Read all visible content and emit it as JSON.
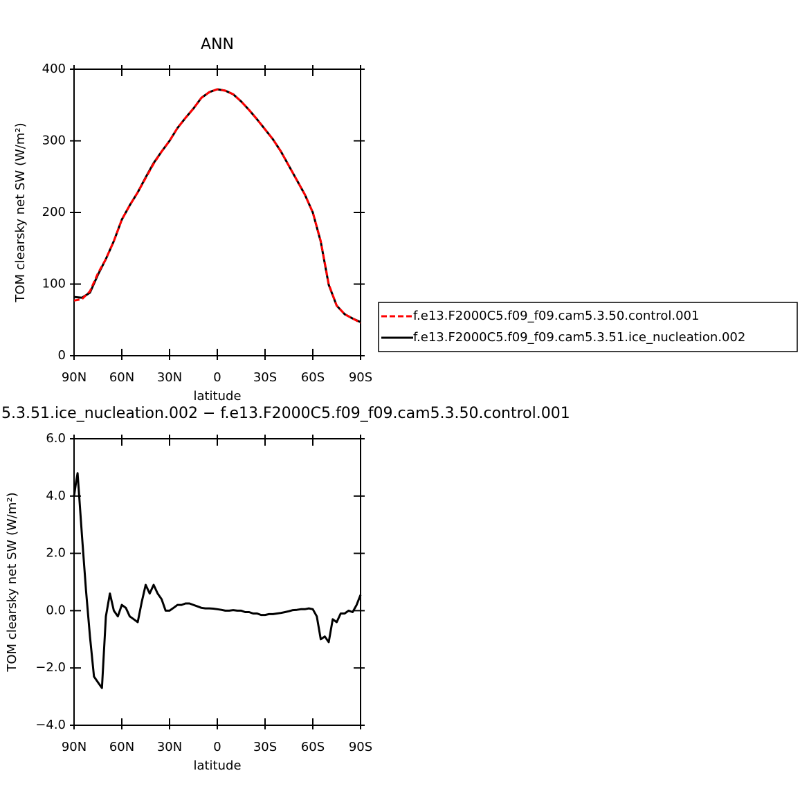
{
  "chart_data": [
    {
      "type": "line",
      "title": "ANN",
      "xlabel": "latitude",
      "ylabel": "TOM clearsky net SW (W/m²)",
      "x": [
        90,
        85,
        80,
        75,
        70,
        65,
        60,
        55,
        50,
        45,
        40,
        35,
        30,
        25,
        20,
        15,
        10,
        5,
        0,
        -5,
        -10,
        -15,
        -20,
        -25,
        -30,
        -35,
        -40,
        -45,
        -50,
        -55,
        -60,
        -65,
        -70,
        -75,
        -80,
        -85,
        -90
      ],
      "series": [
        {
          "name": "f.e13.F2000C5.f09_f09.cam5.3.50.control.001",
          "color": "#ff0000",
          "dashed": true,
          "values": [
            77,
            79,
            90,
            115,
            135,
            160,
            190,
            210,
            228,
            248,
            268,
            285,
            300,
            318,
            332,
            345,
            360,
            368,
            372,
            370,
            365,
            355,
            343,
            330,
            316,
            302,
            285,
            265,
            245,
            225,
            200,
            160,
            100,
            70,
            58,
            52,
            46
          ]
        },
        {
          "name": "f.e13.F2000C5.f09_f09.cam5.3.51.ice_nucleation.002",
          "color": "#000000",
          "dashed": false,
          "values": [
            82,
            81,
            88,
            113,
            135,
            160,
            190,
            210,
            228,
            249,
            269,
            285,
            300,
            318,
            332,
            345,
            360,
            368,
            372,
            370,
            365,
            355,
            343,
            330,
            316,
            302,
            285,
            265,
            245,
            225,
            200,
            159,
            99,
            70,
            58,
            52,
            47
          ]
        }
      ],
      "xlim": [
        90,
        -90
      ],
      "xticks": [
        {
          "value": 90,
          "label": "90N"
        },
        {
          "value": 60,
          "label": "60N"
        },
        {
          "value": 30,
          "label": "30N"
        },
        0,
        {
          "value": -30,
          "label": "30S"
        },
        {
          "value": -60,
          "label": "60S"
        },
        {
          "value": -90,
          "label": "90S"
        }
      ],
      "ylim": [
        0,
        400
      ],
      "yticks": [
        0,
        100,
        200,
        300,
        400
      ]
    },
    {
      "type": "line",
      "title": "5.3.51.ice_nucleation.002 − f.e13.F2000C5.f09_f09.cam5.3.50.control.001",
      "xlabel": "latitude",
      "ylabel": "TOM clearsky net SW (W/m²)",
      "x": [
        90,
        88.7,
        87.8,
        85,
        82.5,
        80,
        77.5,
        75,
        72.5,
        70,
        67.5,
        65,
        62.5,
        60,
        57.5,
        55,
        52.5,
        50,
        47.5,
        45,
        42.5,
        40,
        37.5,
        35,
        32.5,
        30,
        27.5,
        25,
        22.5,
        20,
        17.5,
        15,
        12.5,
        10,
        7.5,
        5,
        2.5,
        0,
        -2.5,
        -5,
        -7.5,
        -10,
        -12.5,
        -15,
        -17.5,
        -20,
        -22.5,
        -25,
        -27.5,
        -30,
        -32.5,
        -35,
        -37.5,
        -40,
        -42.5,
        -45,
        -47.5,
        -50,
        -52.5,
        -55,
        -57.5,
        -60,
        -62.5,
        -65,
        -67.5,
        -70,
        -72.5,
        -75,
        -77.5,
        -80,
        -82.5,
        -85,
        -87.5,
        -90
      ],
      "values": [
        4.0,
        4.5,
        4.8,
        2.6,
        0.7,
        -0.9,
        -2.3,
        -2.5,
        -2.7,
        -0.2,
        0.6,
        0.0,
        -0.2,
        0.2,
        0.1,
        -0.2,
        -0.3,
        -0.4,
        0.3,
        0.9,
        0.6,
        0.9,
        0.6,
        0.4,
        0.0,
        0.0,
        0.1,
        0.2,
        0.2,
        0.25,
        0.25,
        0.2,
        0.15,
        0.1,
        0.08,
        0.08,
        0.07,
        0.05,
        0.03,
        0.0,
        0.0,
        0.02,
        0.0,
        0.0,
        -0.05,
        -0.05,
        -0.1,
        -0.1,
        -0.15,
        -0.15,
        -0.12,
        -0.12,
        -0.1,
        -0.08,
        -0.05,
        -0.02,
        0.02,
        0.03,
        0.05,
        0.05,
        0.08,
        0.05,
        -0.2,
        -1.0,
        -0.9,
        -1.1,
        -0.3,
        -0.4,
        -0.1,
        -0.1,
        0.0,
        -0.05,
        0.2,
        0.55
      ],
      "color": "#000000",
      "xlim": [
        90,
        -90
      ],
      "xticks": [
        {
          "value": 90,
          "label": "90N"
        },
        {
          "value": 60,
          "label": "60N"
        },
        {
          "value": 30,
          "label": "30N"
        },
        0,
        {
          "value": -30,
          "label": "30S"
        },
        {
          "value": -60,
          "label": "60S"
        },
        {
          "value": -90,
          "label": "90S"
        }
      ],
      "ylim": [
        -4,
        6
      ],
      "yticks": [
        {
          "value": -4,
          "label": "−4.0"
        },
        {
          "value": -2,
          "label": "−2.0"
        },
        {
          "value": 0,
          "label": "0.0"
        },
        {
          "value": 2,
          "label": "2.0"
        },
        {
          "value": 4,
          "label": "4.0"
        },
        {
          "value": 6,
          "label": "6.0"
        }
      ]
    }
  ]
}
